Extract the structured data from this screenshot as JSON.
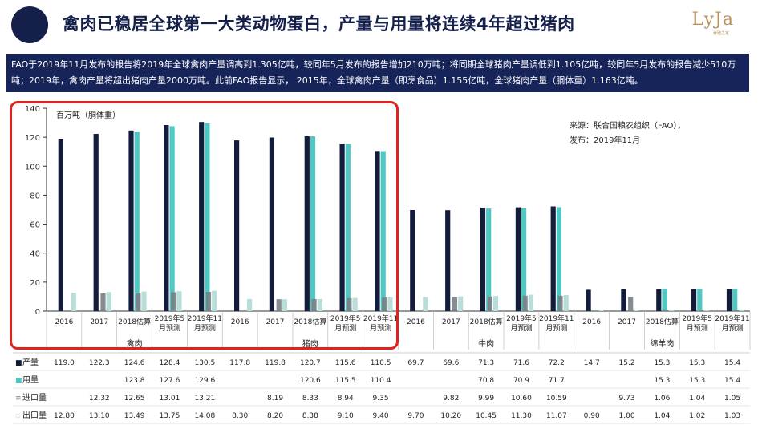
{
  "header": {
    "title": "禽肉已稳居全球第一大类动物蛋白，产量与用量将连续4年超过猪肉",
    "logo_text": "LyJa",
    "logo_sub": "养殖之家"
  },
  "summary": {
    "text": "FAO于2019年11月发布的报告将2019年全球禽肉产量调高到1.305亿吨，较同年5月发布的报告增加210万吨；将同期全球猪肉产量调低到1.105亿吨，较同年5月发布的报告减少510万吨；2019年，禽肉产量将超出猪肉产量2000万吨。此前FAO报告显示， 2015年，全球禽肉产量（即烹食品）1.155亿吨，全球猪肉产量（胴体重）1.163亿吨。"
  },
  "colors": {
    "production": "#141c3c",
    "consumption": "#4fc7c2",
    "import": "#7a7f86",
    "export": "#b9ded9",
    "highlight": "#e0231e",
    "header_dark": "#14204a"
  },
  "chart_data": {
    "type": "bar",
    "ylabel": "百万吨（胴体重）",
    "ylim": [
      0,
      140
    ],
    "yticks": [
      0,
      20,
      40,
      60,
      80,
      100,
      120,
      140
    ],
    "source_line1": "来源：联合国粮农组织（FAO），",
    "source_line2": "发布：2019年11月",
    "groups": [
      {
        "name": "禽肉",
        "categories": [
          "2016",
          "2017",
          "2018估算",
          "2019年5月预测",
          "2019年11月预测"
        ]
      },
      {
        "name": "猪肉",
        "categories": [
          "2016",
          "2017",
          "2018估算",
          "2019年5月预测",
          "2019年11月预测"
        ]
      },
      {
        "name": "牛肉",
        "categories": [
          "2016",
          "2017",
          "2018估算",
          "2019年5月预测",
          "2019年11月预测"
        ]
      },
      {
        "name": "绵羊肉",
        "categories": [
          "2016",
          "2017",
          "2018估算",
          "2019年5月预测",
          "2019年11月预测"
        ]
      }
    ],
    "category_labels": [
      [
        "2016"
      ],
      [
        "2017"
      ],
      [
        "2018估算"
      ],
      [
        "2019年5",
        "月预测"
      ],
      [
        "2019年11",
        "月预测"
      ]
    ],
    "series": [
      {
        "name": "产量",
        "marker": "■",
        "values": [
          119.0,
          122.3,
          124.6,
          128.4,
          130.5,
          117.8,
          119.8,
          120.7,
          115.6,
          110.5,
          69.7,
          69.6,
          71.3,
          71.6,
          72.2,
          14.7,
          15.2,
          15.3,
          15.3,
          15.4
        ]
      },
      {
        "name": "用量",
        "marker": "■",
        "values": [
          null,
          null,
          123.8,
          127.6,
          129.6,
          null,
          null,
          120.6,
          115.5,
          110.4,
          null,
          null,
          70.8,
          70.9,
          71.7,
          null,
          null,
          15.3,
          15.3,
          15.4
        ]
      },
      {
        "name": "进口量",
        "marker": "≡",
        "values": [
          null,
          12.32,
          12.65,
          13.01,
          13.21,
          null,
          8.19,
          8.33,
          8.94,
          9.35,
          null,
          9.82,
          9.99,
          10.6,
          10.59,
          null,
          9.73,
          1.06,
          1.04,
          1.05
        ]
      },
      {
        "name": "出口量",
        "marker": "▫",
        "values": [
          12.8,
          13.1,
          13.49,
          13.75,
          14.08,
          8.3,
          8.2,
          8.38,
          9.1,
          9.4,
          9.7,
          10.2,
          10.45,
          11.3,
          11.07,
          0.9,
          1.0,
          1.04,
          1.02,
          1.03
        ]
      }
    ],
    "table_rows": [
      {
        "label": "产量",
        "marker": "■",
        "cells": [
          "119.0",
          "122.3",
          "124.6",
          "128.4",
          "130.5",
          "117.8",
          "119.8",
          "120.7",
          "115.6",
          "110.5",
          "69.7",
          "69.6",
          "71.3",
          "71.6",
          "72.2",
          "14.7",
          "15.2",
          "15.3",
          "15.3",
          "15.4"
        ]
      },
      {
        "label": "用量",
        "marker": "■",
        "cells": [
          "",
          "",
          "123.8",
          "127.6",
          "129.6",
          "",
          "",
          "120.6",
          "115.5",
          "110.4",
          "",
          "",
          "70.8",
          "70.9",
          "71.7",
          "",
          "",
          "15.3",
          "15.3",
          "15.4"
        ]
      },
      {
        "label": "进口量",
        "marker": "≡",
        "cells": [
          "",
          "12.32",
          "12.65",
          "13.01",
          "13.21",
          "",
          "8.19",
          "8.33",
          "8.94",
          "9.35",
          "",
          "9.82",
          "9.99",
          "10.60",
          "10.59",
          "",
          "9.73",
          "1.06",
          "1.04",
          "1.05"
        ]
      },
      {
        "label": "出口量",
        "marker": "▫",
        "cells": [
          "12.80",
          "13.10",
          "13.49",
          "13.75",
          "14.08",
          "8.30",
          "8.20",
          "8.38",
          "9.10",
          "9.40",
          "9.70",
          "10.20",
          "10.45",
          "11.30",
          "11.07",
          "0.90",
          "1.00",
          "1.04",
          "1.02",
          "1.03"
        ]
      }
    ]
  }
}
